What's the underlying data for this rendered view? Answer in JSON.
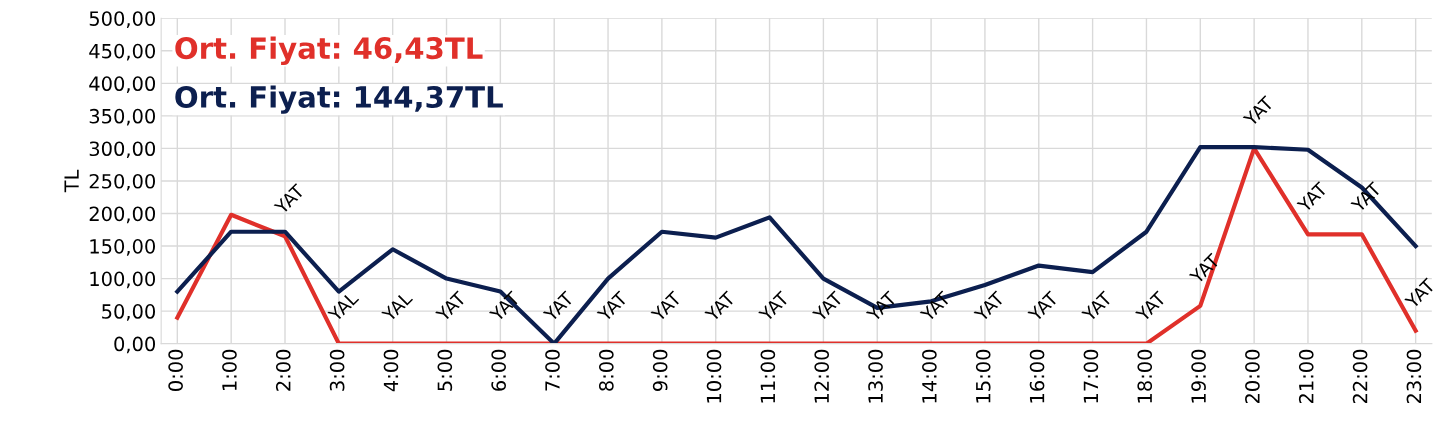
{
  "chart_data": {
    "type": "line",
    "ylabel": "TL",
    "categories": [
      "0:00",
      "1:00",
      "2:00",
      "3:00",
      "4:00",
      "5:00",
      "6:00",
      "7:00",
      "8:00",
      "9:00",
      "10:00",
      "11:00",
      "12:00",
      "13:00",
      "14:00",
      "15:00",
      "16:00",
      "17:00",
      "18:00",
      "19:00",
      "20:00",
      "21:00",
      "22:00",
      "23:00"
    ],
    "series": [
      {
        "color": "#e0302a",
        "values": [
          40,
          198,
          165,
          0,
          0,
          0,
          0,
          0,
          0,
          0,
          0,
          0,
          0,
          0,
          0,
          0,
          0,
          0,
          0,
          58,
          300,
          168,
          168,
          20
        ]
      },
      {
        "color": "#0c1f4f",
        "values": [
          80,
          172,
          172,
          80,
          145,
          100,
          80,
          0,
          100,
          172,
          163,
          194,
          100,
          55,
          65,
          90,
          120,
          110,
          172,
          302,
          302,
          298,
          240,
          150
        ]
      }
    ],
    "ylim": [
      0,
      500
    ],
    "yticks": [
      {
        "value": 0,
        "label": "0,00"
      },
      {
        "value": 50,
        "label": "50,00"
      },
      {
        "value": 100,
        "label": "100,00"
      },
      {
        "value": 150,
        "label": "150,00"
      },
      {
        "value": 200,
        "label": "200,00"
      },
      {
        "value": 250,
        "label": "250,00"
      },
      {
        "value": 300,
        "label": "300,00"
      },
      {
        "value": 350,
        "label": "350,00"
      },
      {
        "value": 400,
        "label": "400,00"
      },
      {
        "value": 450,
        "label": "450,00"
      },
      {
        "value": 500,
        "label": "500,00"
      }
    ],
    "grid": true,
    "marker": "none",
    "line_style": "solid",
    "annotations": [
      "Ort. Fiyat: 46,43TL",
      "Ort. Fiyat: 144,37TL",
      "YAT",
      "YAL",
      "YAL",
      "YAT",
      "YAT",
      "YAT",
      "YAT",
      "YAT",
      "YAT",
      "YAT",
      "YAT",
      "YAT",
      "YAT",
      "YAT",
      "YAT",
      "YAT",
      "YAT",
      "YAT",
      "YAT",
      "YAT",
      "YAT",
      "YAT"
    ]
  }
}
